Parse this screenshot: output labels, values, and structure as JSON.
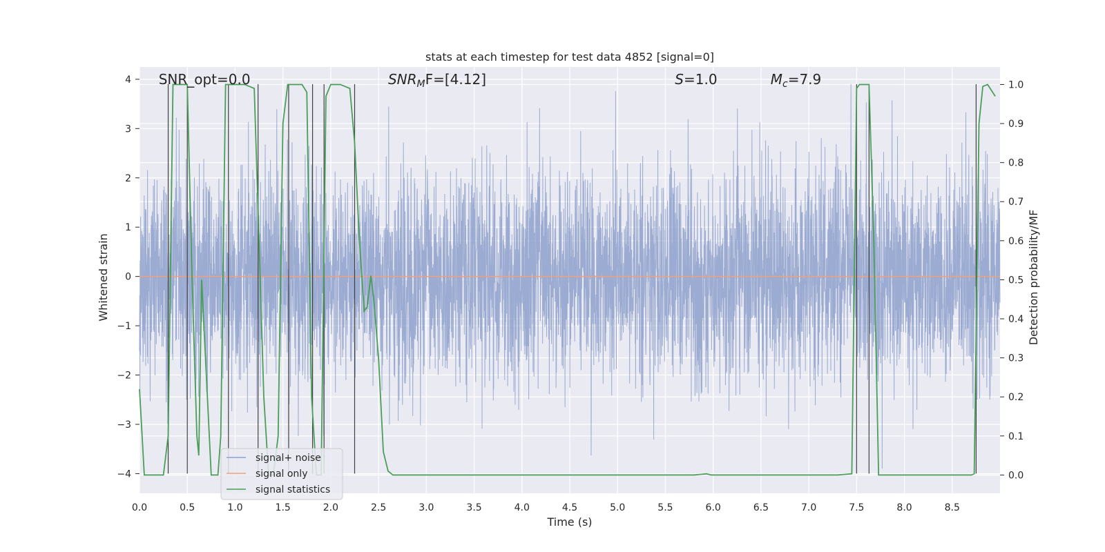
{
  "chart_data": {
    "type": "line",
    "title": "stats at each timestep for test data 4852 [signal=0]",
    "xlabel": "Time (s)",
    "ylabel_left": "Whitened strain",
    "ylabel_right": "Detection probability/MF",
    "xlim": [
      0.0,
      9.0
    ],
    "ylim_left": [
      -4.4,
      4.25
    ],
    "ylim_right": [
      -0.047,
      1.045
    ],
    "xticks": [
      0.0,
      0.5,
      1.0,
      1.5,
      2.0,
      2.5,
      3.0,
      3.5,
      4.0,
      4.5,
      5.0,
      5.5,
      6.0,
      6.5,
      7.0,
      7.5,
      8.0,
      8.5
    ],
    "xtick_labels": [
      "0.0",
      "0.5",
      "1.0",
      "1.5",
      "2.0",
      "2.5",
      "3.0",
      "3.5",
      "4.0",
      "4.5",
      "5.0",
      "5.5",
      "6.0",
      "6.5",
      "7.0",
      "7.5",
      "8.0",
      "8.5"
    ],
    "yticks_left": [
      4,
      3,
      2,
      1,
      0,
      -1,
      -2,
      -3,
      -4
    ],
    "ytick_labels_left": [
      "4",
      "3",
      "2",
      "1",
      "0",
      "−1",
      "−2",
      "−3",
      "−4"
    ],
    "yticks_right": [
      1.0,
      0.9,
      0.8,
      0.7,
      0.6,
      0.5,
      0.4,
      0.3,
      0.2,
      0.1,
      0.0
    ],
    "ytick_labels_right": [
      "1.0",
      "0.9",
      "0.8",
      "0.7",
      "0.6",
      "0.5",
      "0.4",
      "0.3",
      "0.2",
      "0.1",
      "0.0"
    ],
    "annotations": {
      "snr_opt": "SNR_opt=0.0",
      "snr_mf_sym": "SNR",
      "snr_mf_sub": "M",
      "snr_mf_rest": "F=[4.12]",
      "s_sym": "S",
      "s_rest": "=1.0",
      "mc_sym": "M",
      "mc_sub": "c",
      "mc_rest": "=7.9"
    },
    "annotation_positions_data": {
      "snr_opt": [
        0.2,
        4.0
      ],
      "snr_mf": [
        2.6,
        4.0
      ],
      "s": [
        5.6,
        4.0
      ],
      "mc": [
        6.6,
        4.0
      ]
    },
    "legend": {
      "position": "lower-left",
      "entries": [
        {
          "label": "signal+ noise",
          "color": "#8da0cb"
        },
        {
          "label": "signal only",
          "color": "#f0a07a"
        },
        {
          "label": "signal statistics",
          "color": "#4a9e57"
        }
      ]
    },
    "series": [
      {
        "name": "signal+ noise",
        "axis": "left",
        "color": "#8da0cb",
        "description": "noisy whitened strain, approx symmetric about 0, peaks up to about ±3.9",
        "seed": 4852,
        "n_samples": 4608,
        "sigma": 1.05
      },
      {
        "name": "signal only",
        "axis": "left",
        "color": "#f0a07a",
        "x": [
          0.0,
          9.0
        ],
        "y": [
          0.0,
          0.0
        ]
      },
      {
        "name": "signal statistics",
        "axis": "right",
        "color": "#4a9e57",
        "x": [
          0.0,
          0.05,
          0.25,
          0.3,
          0.35,
          0.4,
          0.45,
          0.5,
          0.55,
          0.6,
          0.62,
          0.65,
          0.75,
          0.78,
          0.82,
          0.85,
          0.9,
          0.95,
          1.0,
          1.05,
          1.1,
          1.2,
          1.25,
          1.3,
          1.35,
          1.4,
          1.45,
          1.5,
          1.55,
          1.6,
          1.65,
          1.7,
          1.75,
          1.8,
          1.85,
          1.9,
          1.95,
          2.0,
          2.05,
          2.1,
          2.2,
          2.25,
          2.3,
          2.35,
          2.38,
          2.42,
          2.45,
          2.5,
          2.55,
          2.6,
          2.65,
          2.7,
          2.8,
          3.0,
          3.05,
          3.5,
          4.0,
          4.5,
          5.0,
          5.5,
          5.8,
          5.93,
          5.98,
          6.5,
          7.0,
          7.3,
          7.45,
          7.5,
          7.53,
          7.58,
          7.63,
          7.68,
          7.73,
          7.8,
          8.0,
          8.5,
          8.7,
          8.73,
          8.78,
          8.82,
          8.87,
          8.95
        ],
        "y": [
          0.22,
          0.0,
          0.0,
          0.1,
          1.0,
          1.0,
          1.0,
          1.0,
          0.5,
          0.1,
          0.05,
          0.5,
          0.0,
          0.0,
          0.0,
          0.1,
          1.0,
          1.0,
          1.0,
          1.0,
          1.0,
          0.99,
          0.6,
          0.2,
          0.0,
          0.0,
          0.1,
          0.9,
          1.0,
          1.0,
          1.0,
          1.0,
          0.98,
          0.2,
          0.0,
          0.0,
          0.97,
          1.0,
          1.0,
          1.0,
          0.99,
          0.85,
          0.6,
          0.42,
          0.43,
          0.51,
          0.45,
          0.3,
          0.06,
          0.01,
          0.0,
          0.0,
          0.0,
          0.0,
          0.0,
          0.0,
          0.0,
          0.0,
          0.0,
          0.0,
          0.0,
          0.003,
          0.0,
          0.0,
          0.0,
          0.0,
          0.003,
          0.99,
          1.0,
          1.0,
          1.0,
          0.6,
          0.0,
          0.0,
          0.0,
          0.0,
          0.0,
          0.003,
          0.9,
          0.995,
          1.0,
          0.97
        ]
      }
    ],
    "vertical_lines": {
      "color": "#404040",
      "x": [
        0.3,
        0.5,
        0.93,
        1.24,
        1.56,
        1.81,
        1.93,
        2.25,
        7.5,
        7.63,
        8.75
      ],
      "y_range": [
        -4.0,
        3.9
      ]
    }
  }
}
